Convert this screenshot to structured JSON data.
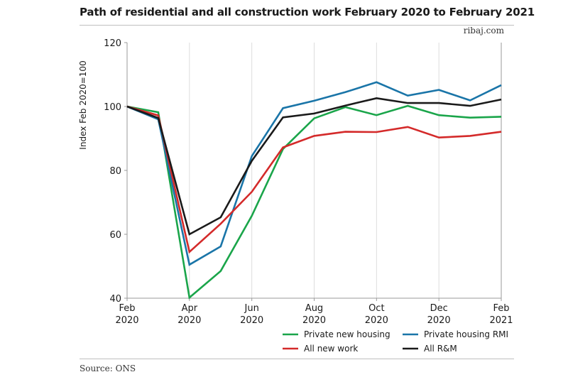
{
  "header": {
    "title": "Path of residential and all construction work February 2020 to February 2021",
    "site": "ribaj.com"
  },
  "footer": {
    "source": "Source: ONS"
  },
  "chart_data": {
    "type": "line",
    "ylabel": "Index Feb 2020=100",
    "xlabel": "",
    "ylim": [
      40,
      120
    ],
    "yticks": [
      40,
      60,
      80,
      100,
      120
    ],
    "x": [
      "Feb 2020",
      "Mar 2020",
      "Apr 2020",
      "May 2020",
      "Jun 2020",
      "Jul 2020",
      "Aug 2020",
      "Sep 2020",
      "Oct 2020",
      "Nov 2020",
      "Dec 2020",
      "Jan 2021",
      "Feb 2021"
    ],
    "xticks": [
      {
        "index": 0,
        "line1": "Feb",
        "line2": "2020"
      },
      {
        "index": 2,
        "line1": "Apr",
        "line2": "2020"
      },
      {
        "index": 4,
        "line1": "Jun",
        "line2": "2020"
      },
      {
        "index": 6,
        "line1": "Aug",
        "line2": "2020"
      },
      {
        "index": 8,
        "line1": "Oct",
        "line2": "2020"
      },
      {
        "index": 10,
        "line1": "Dec",
        "line2": "2020"
      },
      {
        "index": 12,
        "line1": "Feb",
        "line2": "2021"
      }
    ],
    "grid": "vertical",
    "legend": "bottom",
    "series": [
      {
        "name": "Private new housing",
        "color": "#1aa54a",
        "values": [
          100,
          98.2,
          40.2,
          48.5,
          65.8,
          86.7,
          96.3,
          99.8,
          97.3,
          100.2,
          97.3,
          96.5,
          96.8
        ]
      },
      {
        "name": "Private housing RMI",
        "color": "#1a75a8",
        "values": [
          100,
          96.0,
          50.5,
          56.2,
          84.5,
          99.5,
          101.8,
          104.5,
          107.6,
          103.4,
          105.2,
          101.9,
          106.7
        ]
      },
      {
        "name": "All new work",
        "color": "#d42a2a",
        "values": [
          100,
          97.2,
          54.5,
          63.3,
          73.3,
          87.2,
          90.8,
          92.1,
          92.0,
          93.6,
          90.3,
          90.8,
          92.1
        ]
      },
      {
        "name": "All R&M",
        "color": "#1a1a1a",
        "values": [
          100,
          96.4,
          60.0,
          65.3,
          83.0,
          96.6,
          97.8,
          100.3,
          102.6,
          101.1,
          101.1,
          100.2,
          102.2
        ]
      }
    ]
  }
}
